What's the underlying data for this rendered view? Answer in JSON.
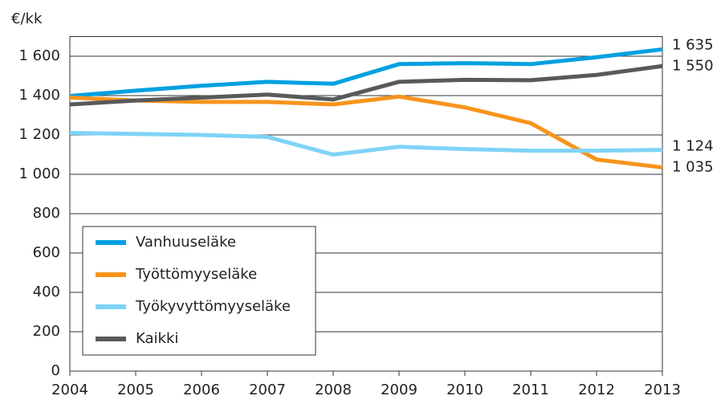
{
  "chart_data": {
    "type": "line",
    "y_label": "€/kk",
    "x": [
      2004,
      2005,
      2006,
      2007,
      2008,
      2009,
      2010,
      2011,
      2012,
      2013
    ],
    "xlim": [
      2004,
      2013
    ],
    "xticks": [
      2004,
      2005,
      2006,
      2007,
      2008,
      2009,
      2010,
      2011,
      2012,
      2013
    ],
    "ylim": [
      0,
      1700
    ],
    "yticks": [
      0,
      200,
      400,
      600,
      800,
      {
        "value": 1000,
        "label": "1 000"
      },
      {
        "value": 1200,
        "label": "1 200"
      },
      {
        "value": 1400,
        "label": "1 400"
      },
      {
        "value": 1600,
        "label": "1 600"
      }
    ],
    "grid": true,
    "legend": "lower-left",
    "series": [
      {
        "name": "Vanhuuseläke",
        "color": "#00a0e0",
        "values": [
          1398,
          1425,
          1450,
          1470,
          1460,
          1560,
          1565,
          1560,
          1595,
          1635
        ],
        "value_labels": [
          null,
          null,
          null,
          null,
          null,
          null,
          null,
          null,
          null,
          "1 635"
        ]
      },
      {
        "name": "Työttömyyseläke",
        "color": "#f7941d",
        "values": [
          1390,
          1375,
          1368,
          1368,
          1355,
          1395,
          1340,
          1260,
          1075,
          1035
        ],
        "value_labels": [
          null,
          null,
          null,
          null,
          null,
          null,
          null,
          null,
          null,
          "1 035"
        ]
      },
      {
        "name": "Työkyvyttömyyseläke",
        "color": "#7fd3f7",
        "values": [
          1210,
          1205,
          1200,
          1190,
          1100,
          1140,
          1128,
          1120,
          1120,
          1124
        ],
        "value_labels": [
          null,
          null,
          null,
          null,
          null,
          null,
          null,
          null,
          null,
          "1 124"
        ]
      },
      {
        "name": "Kaikki",
        "color": "#58595b",
        "values": [
          1355,
          1375,
          1390,
          1405,
          1380,
          1470,
          1480,
          1478,
          1505,
          1550
        ],
        "value_labels": [
          null,
          null,
          null,
          null,
          null,
          null,
          null,
          null,
          null,
          "1 550"
        ]
      }
    ]
  }
}
